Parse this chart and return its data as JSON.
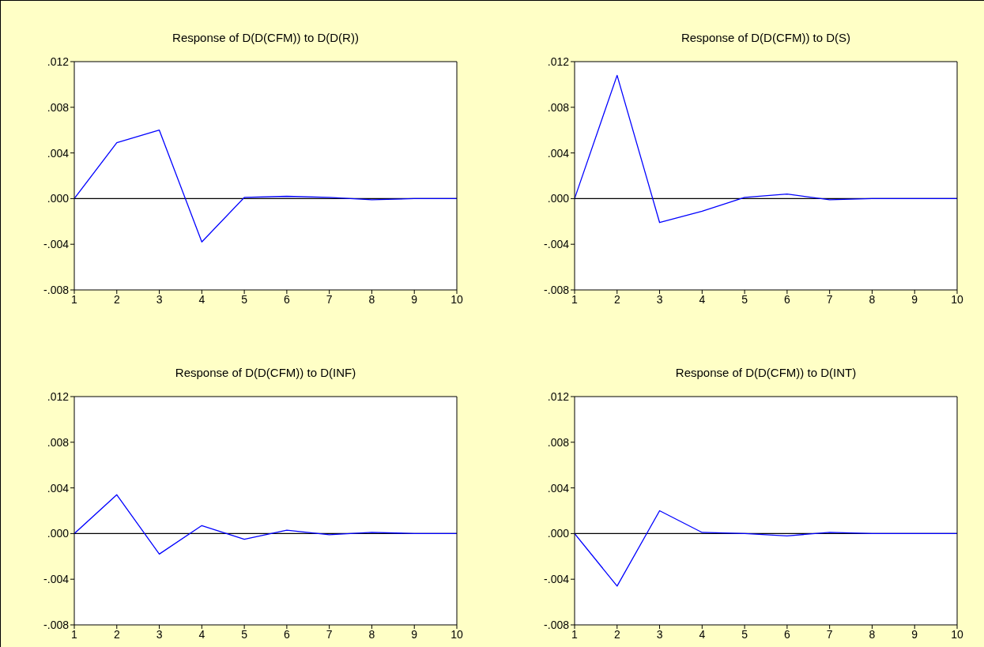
{
  "chart_data": [
    {
      "type": "line",
      "title": "Response of D(D(CFM)) to D(D(R))",
      "x": [
        1,
        2,
        3,
        4,
        5,
        6,
        7,
        8,
        9,
        10
      ],
      "values": [
        0,
        0.0049,
        0.006,
        -0.0038,
        0.0001,
        0.0002,
        0.0001,
        -0.0001,
        0,
        0
      ],
      "color": "#0000ff",
      "xlim": [
        1,
        10
      ],
      "xticks": [
        1,
        2,
        3,
        4,
        5,
        6,
        7,
        8,
        9,
        10
      ],
      "ylim": [
        -0.008,
        0.012
      ],
      "yticks": [
        {
          "value": -0.008,
          "label": "-.008"
        },
        {
          "value": -0.004,
          "label": "-.004"
        },
        {
          "value": 0,
          "label": ".000"
        },
        {
          "value": 0.004,
          "label": ".004"
        },
        {
          "value": 0.008,
          "label": ".008"
        },
        {
          "value": 0.012,
          "label": ".012"
        }
      ],
      "ref_lines": [
        {
          "axis": "y",
          "value": 0,
          "color": "#000000"
        }
      ]
    },
    {
      "type": "line",
      "title": "Response of D(D(CFM)) to D(S)",
      "x": [
        1,
        2,
        3,
        4,
        5,
        6,
        7,
        8,
        9,
        10
      ],
      "values": [
        0,
        0.0108,
        -0.0021,
        -0.0011,
        0.0001,
        0.0004,
        -0.0001,
        0,
        0,
        0
      ],
      "color": "#0000ff",
      "xlim": [
        1,
        10
      ],
      "xticks": [
        1,
        2,
        3,
        4,
        5,
        6,
        7,
        8,
        9,
        10
      ],
      "ylim": [
        -0.008,
        0.012
      ],
      "yticks": [
        {
          "value": -0.008,
          "label": "-.008"
        },
        {
          "value": -0.004,
          "label": "-.004"
        },
        {
          "value": 0,
          "label": ".000"
        },
        {
          "value": 0.004,
          "label": ".004"
        },
        {
          "value": 0.008,
          "label": ".008"
        },
        {
          "value": 0.012,
          "label": ".012"
        }
      ],
      "ref_lines": [
        {
          "axis": "y",
          "value": 0,
          "color": "#000000"
        }
      ]
    },
    {
      "type": "line",
      "title": "Response of D(D(CFM)) to D(INF)",
      "x": [
        1,
        2,
        3,
        4,
        5,
        6,
        7,
        8,
        9,
        10
      ],
      "values": [
        0,
        0.0034,
        -0.0018,
        0.0007,
        -0.0005,
        0.0003,
        -0.0001,
        0.0001,
        0,
        0
      ],
      "color": "#0000ff",
      "xlim": [
        1,
        10
      ],
      "xticks": [
        1,
        2,
        3,
        4,
        5,
        6,
        7,
        8,
        9,
        10
      ],
      "ylim": [
        -0.008,
        0.012
      ],
      "yticks": [
        {
          "value": -0.008,
          "label": "-.008"
        },
        {
          "value": -0.004,
          "label": "-.004"
        },
        {
          "value": 0,
          "label": ".000"
        },
        {
          "value": 0.004,
          "label": ".004"
        },
        {
          "value": 0.008,
          "label": ".008"
        },
        {
          "value": 0.012,
          "label": ".012"
        }
      ],
      "ref_lines": [
        {
          "axis": "y",
          "value": 0,
          "color": "#000000"
        }
      ]
    },
    {
      "type": "line",
      "title": "Response of D(D(CFM)) to D(INT)",
      "x": [
        1,
        2,
        3,
        4,
        5,
        6,
        7,
        8,
        9,
        10
      ],
      "values": [
        0,
        -0.0046,
        0.002,
        0.0001,
        0,
        -0.0002,
        0.0001,
        0,
        0,
        0
      ],
      "color": "#0000ff",
      "xlim": [
        1,
        10
      ],
      "xticks": [
        1,
        2,
        3,
        4,
        5,
        6,
        7,
        8,
        9,
        10
      ],
      "ylim": [
        -0.008,
        0.012
      ],
      "yticks": [
        {
          "value": -0.008,
          "label": "-.008"
        },
        {
          "value": -0.004,
          "label": "-.004"
        },
        {
          "value": 0,
          "label": ".000"
        },
        {
          "value": 0.004,
          "label": ".004"
        },
        {
          "value": 0.008,
          "label": ".008"
        },
        {
          "value": 0.012,
          "label": ".012"
        }
      ],
      "ref_lines": [
        {
          "axis": "y",
          "value": 0,
          "color": "#000000"
        }
      ]
    }
  ]
}
